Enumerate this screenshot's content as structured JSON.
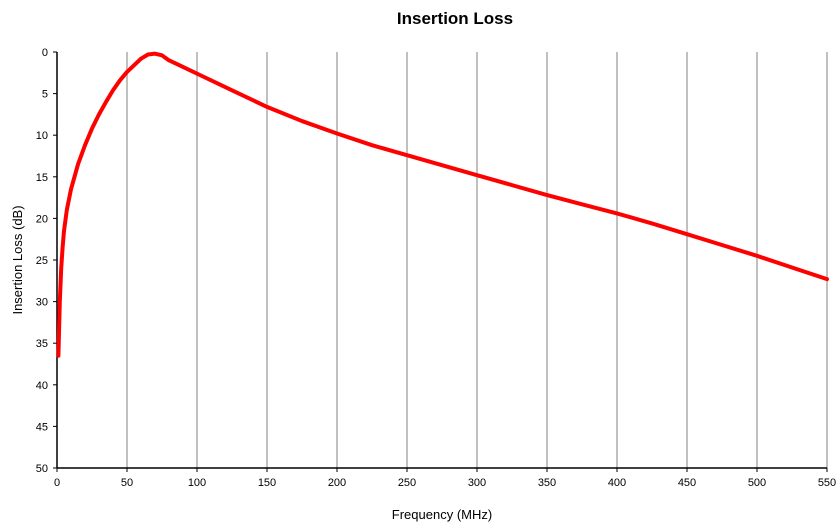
{
  "chart_data": {
    "type": "line",
    "title": "Insertion Loss",
    "xlabel": "Frequency (MHz)",
    "ylabel": "Insertion Loss (dB)",
    "xlim": [
      0,
      550
    ],
    "ylim": [
      0,
      50
    ],
    "y_inverted": true,
    "x_ticks": [
      0,
      50,
      100,
      150,
      200,
      250,
      300,
      350,
      400,
      450,
      500,
      550
    ],
    "y_ticks": [
      0,
      5,
      10,
      15,
      20,
      25,
      30,
      35,
      40,
      45,
      50
    ],
    "grid": "vertical",
    "legend": "none",
    "series": [
      {
        "color": "#ff0000",
        "points": [
          [
            1,
            36.5
          ],
          [
            2,
            30
          ],
          [
            3,
            26
          ],
          [
            4,
            23.5
          ],
          [
            5,
            21.5
          ],
          [
            7,
            19
          ],
          [
            10,
            16.5
          ],
          [
            15,
            13.5
          ],
          [
            20,
            11.2
          ],
          [
            25,
            9.2
          ],
          [
            30,
            7.5
          ],
          [
            35,
            6
          ],
          [
            40,
            4.6
          ],
          [
            45,
            3.4
          ],
          [
            50,
            2.4
          ],
          [
            55,
            1.6
          ],
          [
            60,
            0.8
          ],
          [
            65,
            0.3
          ],
          [
            70,
            0.2
          ],
          [
            75,
            0.4
          ],
          [
            80,
            1
          ],
          [
            90,
            1.8
          ],
          [
            100,
            2.6
          ],
          [
            125,
            4.6
          ],
          [
            150,
            6.6
          ],
          [
            175,
            8.3
          ],
          [
            200,
            9.8
          ],
          [
            225,
            11.2
          ],
          [
            250,
            12.4
          ],
          [
            275,
            13.6
          ],
          [
            300,
            14.8
          ],
          [
            325,
            16
          ],
          [
            350,
            17.2
          ],
          [
            375,
            18.3
          ],
          [
            400,
            19.4
          ],
          [
            425,
            20.6
          ],
          [
            450,
            21.9
          ],
          [
            475,
            23.2
          ],
          [
            500,
            24.5
          ],
          [
            525,
            25.9
          ],
          [
            550,
            27.3
          ]
        ]
      }
    ]
  }
}
